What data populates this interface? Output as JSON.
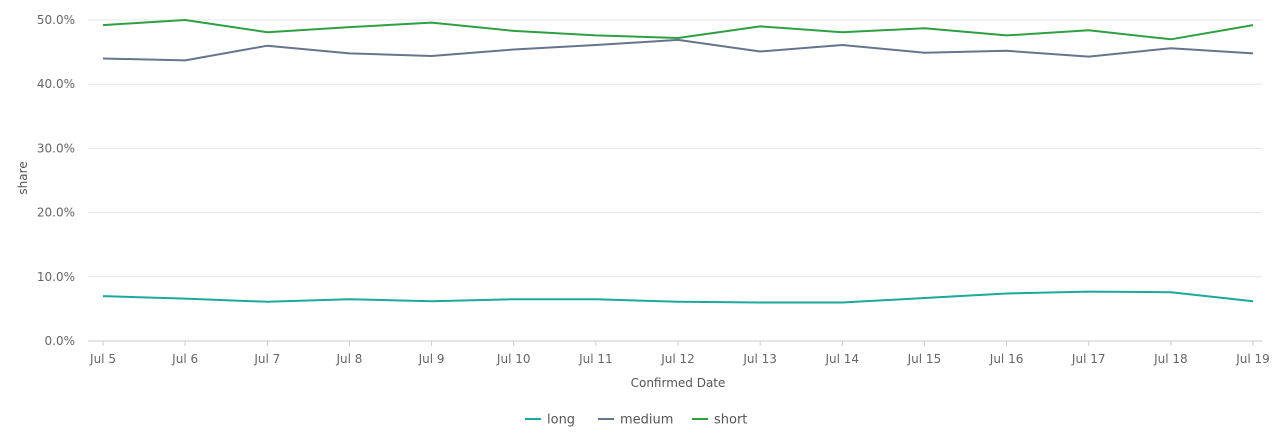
{
  "chart_data": {
    "type": "line",
    "x_categories": [
      "Jul 5",
      "Jul 6",
      "Jul 7",
      "Jul 8",
      "Jul 9",
      "Jul 10",
      "Jul 11",
      "Jul 12",
      "Jul 13",
      "Jul 14",
      "Jul 15",
      "Jul 16",
      "Jul 17",
      "Jul 18",
      "Jul 19"
    ],
    "xlabel": "Confirmed Date",
    "ylabel": "share",
    "ylim": [
      0,
      50
    ],
    "yticks": [
      0,
      10,
      20,
      30,
      40,
      50
    ],
    "ytick_labels": [
      "0.0%",
      "10.0%",
      "20.0%",
      "30.0%",
      "40.0%",
      "50.0%"
    ],
    "grid": true,
    "legend_position": "bottom-center",
    "series": [
      {
        "name": "long",
        "color": "#1aa99a",
        "values": [
          7.0,
          6.6,
          6.1,
          6.5,
          6.2,
          6.5,
          6.5,
          6.1,
          6.0,
          6.0,
          6.7,
          7.4,
          7.7,
          7.6,
          6.2
        ]
      },
      {
        "name": "medium",
        "color": "#66758c",
        "values": [
          44.0,
          43.7,
          46.0,
          44.8,
          44.4,
          45.4,
          46.1,
          46.9,
          45.1,
          46.1,
          44.9,
          45.2,
          44.3,
          45.6,
          44.8
        ]
      },
      {
        "name": "short",
        "color": "#2ea043",
        "values": [
          49.2,
          50.0,
          48.1,
          48.9,
          49.6,
          48.3,
          47.6,
          47.2,
          49.0,
          48.1,
          48.7,
          47.6,
          48.4,
          47.0,
          49.2
        ]
      }
    ]
  }
}
